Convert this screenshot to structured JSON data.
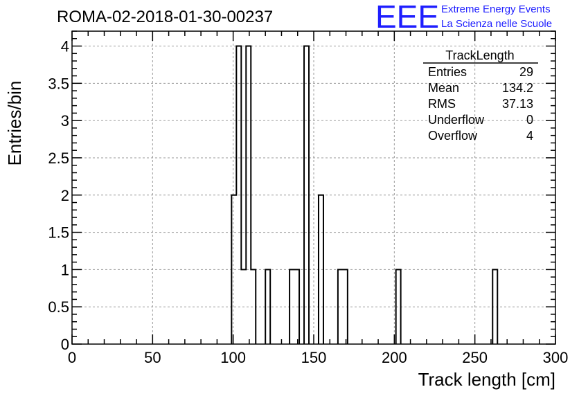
{
  "header": {
    "title": "ROMA-02-2018-01-30-00237",
    "logo_text": "EEE",
    "logo_line1": "Extreme Energy Events",
    "logo_line2": "La Scienza nelle Scuole",
    "logo_color": "#1e1eff"
  },
  "stats": {
    "name": "TrackLength",
    "rows": [
      {
        "label": "Entries",
        "value": "29"
      },
      {
        "label": "Mean",
        "value": "134.2"
      },
      {
        "label": "RMS",
        "value": "37.13"
      },
      {
        "label": "Underflow",
        "value": "0"
      },
      {
        "label": "Overflow",
        "value": "4"
      }
    ]
  },
  "chart_data": {
    "type": "bar",
    "histogram": true,
    "title": "ROMA-02-2018-01-30-00237",
    "xlabel": "Track length [cm]",
    "ylabel": "Entries/bin",
    "xlim": [
      0,
      300
    ],
    "ylim": [
      0,
      4.2
    ],
    "bin_width": 3,
    "x_ticks": [
      0,
      50,
      100,
      150,
      200,
      250,
      300
    ],
    "x_tick_labels": [
      "0",
      "50",
      "100",
      "150",
      "200",
      "250",
      "300"
    ],
    "y_ticks": [
      0,
      0.5,
      1,
      1.5,
      2,
      2.5,
      3,
      3.5,
      4
    ],
    "y_tick_labels": [
      "0",
      "0.5",
      "1",
      "1.5",
      "2",
      "2.5",
      "3",
      "3.5",
      "4"
    ],
    "grid": true,
    "bins": [
      {
        "x0": 99,
        "value": 2
      },
      {
        "x0": 102,
        "value": 4
      },
      {
        "x0": 105,
        "value": 1
      },
      {
        "x0": 108,
        "value": 4
      },
      {
        "x0": 111,
        "value": 1
      },
      {
        "x0": 120,
        "value": 1
      },
      {
        "x0": 135,
        "value": 1
      },
      {
        "x0": 138,
        "value": 1
      },
      {
        "x0": 144,
        "value": 4
      },
      {
        "x0": 153,
        "value": 2
      },
      {
        "x0": 165,
        "value": 1
      },
      {
        "x0": 168,
        "value": 1
      },
      {
        "x0": 201,
        "value": 1
      },
      {
        "x0": 261,
        "value": 1
      }
    ]
  }
}
